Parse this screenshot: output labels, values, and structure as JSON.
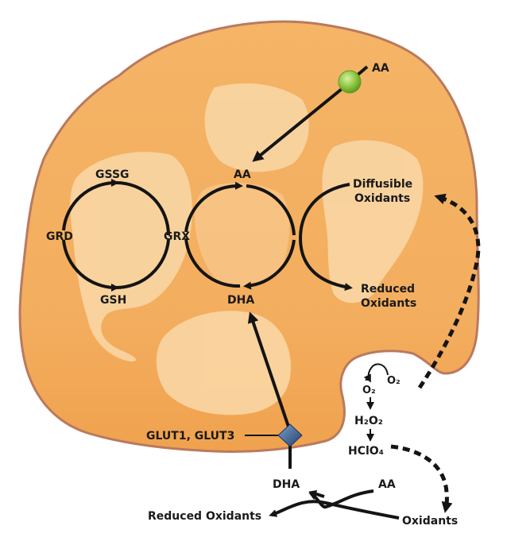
{
  "colors": {
    "cell_fill": "#f4b062",
    "cell_fill_dark": "#f0a450",
    "cell_outline": "#b97a5e",
    "organelle": "#f9d7a6",
    "arrow": "#141414",
    "aa_transporter": "#8cc63f",
    "glut_transporter": "#3a5f93"
  },
  "labels": {
    "aa_top": "AA",
    "gssg": "GSSG",
    "aa_inner": "AA",
    "diffusible_1": "Diffusible",
    "diffusible_2": "Oxidants",
    "grd": "GRD",
    "grx": "GRX",
    "gsh": "GSH",
    "dha_inner": "DHA",
    "reduced_1": "Reduced",
    "reduced_2": "Oxidants",
    "superoxide": "O₂",
    "superoxide_dot": "·",
    "superoxide_charge": "-",
    "oxygen": "O₂",
    "h2o2": "H₂O₂",
    "hclo4": "HClO₄",
    "glut": "GLUT1, GLUT3",
    "dha_outer": "DHA",
    "aa_outer": "AA",
    "reduced_oxidants_outer": "Reduced Oxidants",
    "oxidants_outer": "Oxidants"
  }
}
